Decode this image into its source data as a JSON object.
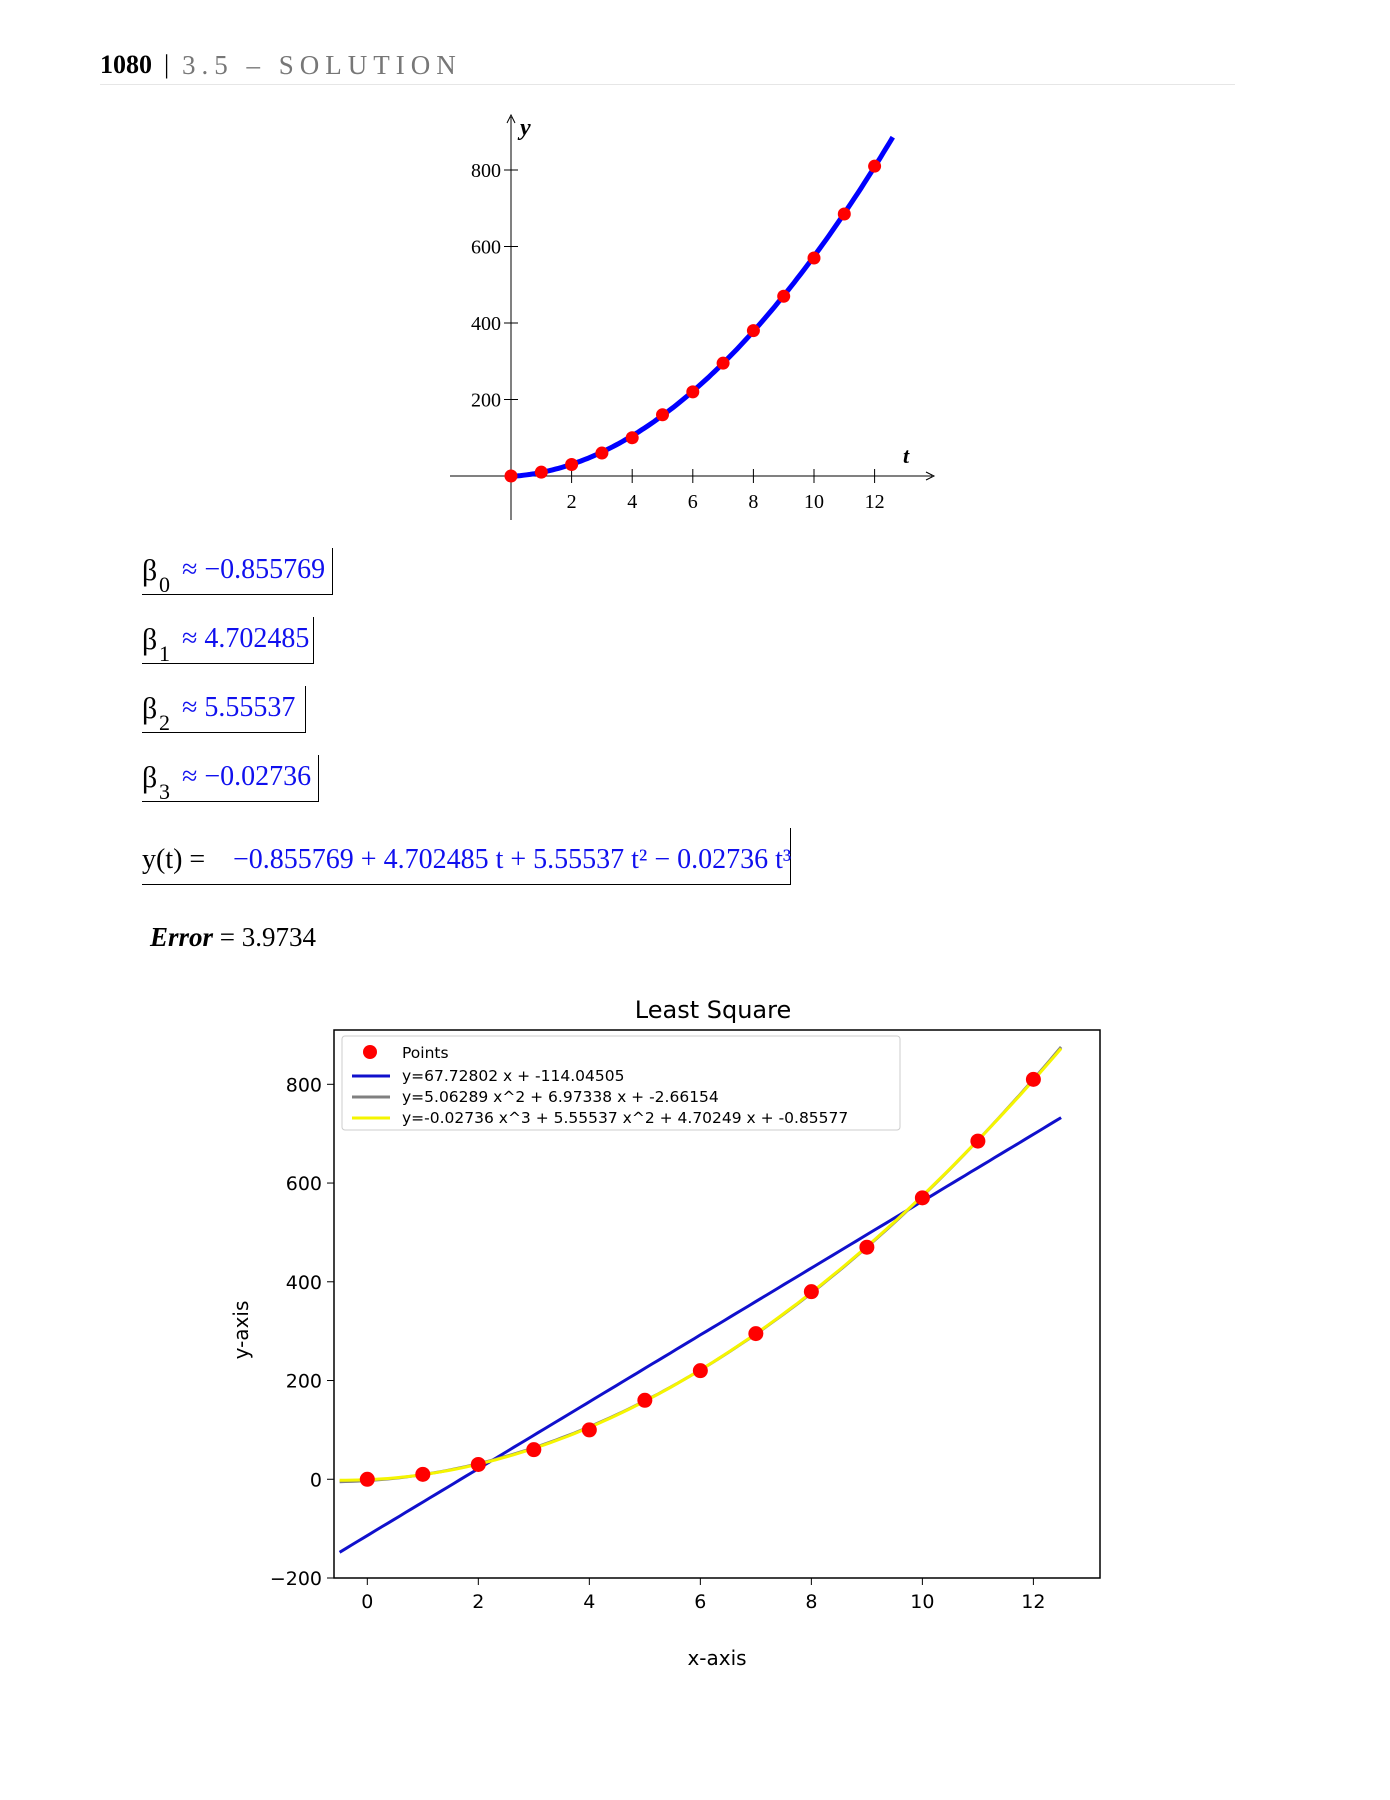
{
  "header": {
    "page_number": "1080",
    "separator": "|",
    "section": "3.5 – SOLUTION"
  },
  "chart_top": {
    "x_label": "t",
    "y_label": "y",
    "x_ticks": [
      "2",
      "4",
      "6",
      "8",
      "10",
      "12"
    ],
    "y_ticks": [
      "200",
      "400",
      "600",
      "800"
    ]
  },
  "results": [
    {
      "symbol": "β",
      "sub": "0",
      "op": "≈",
      "value": "−0.855769"
    },
    {
      "symbol": "β",
      "sub": "1",
      "op": "≈",
      "value": "4.702485"
    },
    {
      "symbol": "β",
      "sub": "2",
      "op": "≈",
      "value": "5.55537"
    },
    {
      "symbol": "β",
      "sub": "3",
      "op": "≈",
      "value": "−0.02736"
    }
  ],
  "equation": {
    "lhs": "y(t) =",
    "rhs": "−0.855769 + 4.702485 t + 5.55537 t² − 0.02736 t³"
  },
  "error": {
    "label": "Error",
    "value": "= 3.9734"
  },
  "chart_data": [
    {
      "type": "scatter",
      "x": [
        0,
        1,
        2,
        3,
        4,
        5,
        6,
        7,
        8,
        9,
        10,
        11,
        12
      ],
      "y": [
        0,
        10,
        30,
        60,
        100,
        160,
        220,
        295,
        380,
        470,
        570,
        685,
        810
      ],
      "fit": {
        "name": "",
        "coefficients": [
          -0.855769,
          4.702485,
          5.55537,
          -0.02736
        ],
        "x_range": [
          0,
          12.6
        ]
      },
      "xlabel": "t",
      "ylabel": "y",
      "xlim": [
        -2,
        14
      ],
      "ylim": [
        -100,
        900
      ],
      "x_ticks": [
        2,
        4,
        6,
        8,
        10,
        12
      ],
      "y_ticks": [
        200,
        400,
        600,
        800
      ],
      "colors": {
        "curve": "#0000ff",
        "points": "#ff0000"
      }
    },
    {
      "type": "scatter",
      "title": "Least Square",
      "xlabel": "x-axis",
      "ylabel": "y-axis",
      "xlim": [
        -0.6,
        13.2
      ],
      "ylim": [
        -200,
        910
      ],
      "x_ticks": [
        "0",
        "2",
        "4",
        "6",
        "8",
        "10",
        "12"
      ],
      "y_ticks": [
        "−200",
        "0",
        "200",
        "400",
        "600",
        "800"
      ],
      "grid": false,
      "legend": "top-left",
      "points": {
        "name": "Points",
        "x": [
          0,
          1,
          2,
          3,
          4,
          5,
          6,
          7,
          8,
          9,
          10,
          11,
          12
        ],
        "y": [
          0,
          10,
          30,
          60,
          100,
          160,
          220,
          295,
          380,
          470,
          570,
          685,
          810
        ]
      },
      "series": [
        {
          "name": "y=67.72802 x + -114.04505",
          "coefficients": [
            -114.04505,
            67.72802
          ],
          "x_range": [
            -0.5,
            12.5
          ],
          "color": "#1010cc"
        },
        {
          "name": "y=5.06289 x^2 + 6.97338 x + -2.66154",
          "coefficients": [
            -2.66154,
            6.97338,
            5.06289
          ],
          "x_range": [
            -0.5,
            12.5
          ],
          "color": "#808080"
        },
        {
          "name": "y=-0.02736 x^3 + 5.55537 x^2 + 4.70249 x + -0.85577",
          "coefficients": [
            -0.85577,
            4.70249,
            5.55537,
            -0.02736
          ],
          "x_range": [
            -0.5,
            12.5
          ],
          "color": "#f5f500"
        }
      ],
      "colors": {
        "points": "#ff0000"
      }
    }
  ]
}
